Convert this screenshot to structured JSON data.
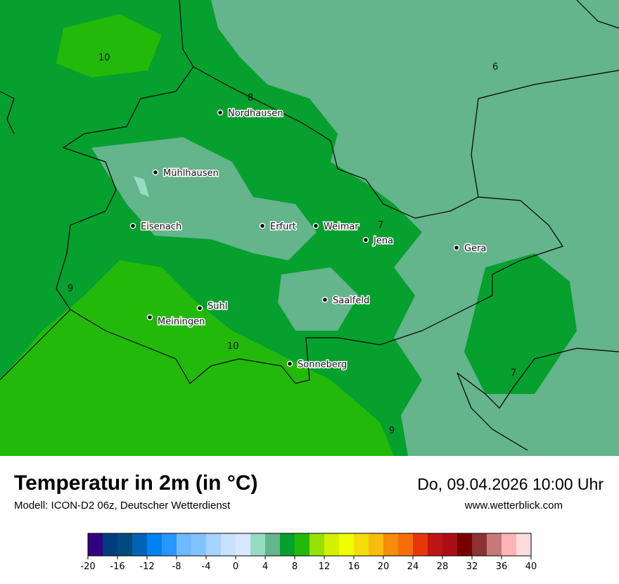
{
  "header": {
    "title": "Temperatur in 2m (in °C)",
    "subtitle": "Modell: ICON-D2 06z, Deutscher Wetterdienst",
    "datetime": "Do, 09.04.2026 10:00 Uhr",
    "website": "www.wetterblick.com"
  },
  "map": {
    "cities": [
      {
        "name": "Nordhausen"
      },
      {
        "name": "Mühlhausen"
      },
      {
        "name": "Eisenach"
      },
      {
        "name": "Erfurt"
      },
      {
        "name": "Weimar"
      },
      {
        "name": "Jena"
      },
      {
        "name": "Gera"
      },
      {
        "name": "Suhl"
      },
      {
        "name": "Meiningen"
      },
      {
        "name": "Saalfeld"
      },
      {
        "name": "Sonneberg"
      }
    ],
    "contour_labels": [
      "10",
      "6",
      "8",
      "7",
      "9",
      "10",
      "7",
      "9"
    ]
  },
  "colorbar": {
    "unit": "°C",
    "min": -20,
    "max": 40,
    "step": 2,
    "ticks": [
      "-20",
      "-16",
      "-12",
      "-8",
      "-4",
      "0",
      "4",
      "8",
      "12",
      "16",
      "20",
      "24",
      "28",
      "32",
      "36",
      "40"
    ],
    "colors": [
      "#330080",
      "#003c82",
      "#004a7e",
      "#0064b4",
      "#0082f0",
      "#2896ff",
      "#6eb9ff",
      "#82c3ff",
      "#a5d2ff",
      "#c8e1ff",
      "#d7e8ff",
      "#96dcc3",
      "#64b48c",
      "#05a02d",
      "#23b90a",
      "#96e100",
      "#d2f000",
      "#f0ff00",
      "#f5dc0a",
      "#f5be0a",
      "#f58c0a",
      "#f56e0a",
      "#e6370a",
      "#be1414",
      "#aa0f19",
      "#780000",
      "#8c3232",
      "#c87878",
      "#ffb4b4",
      "#ffdcdc"
    ]
  }
}
